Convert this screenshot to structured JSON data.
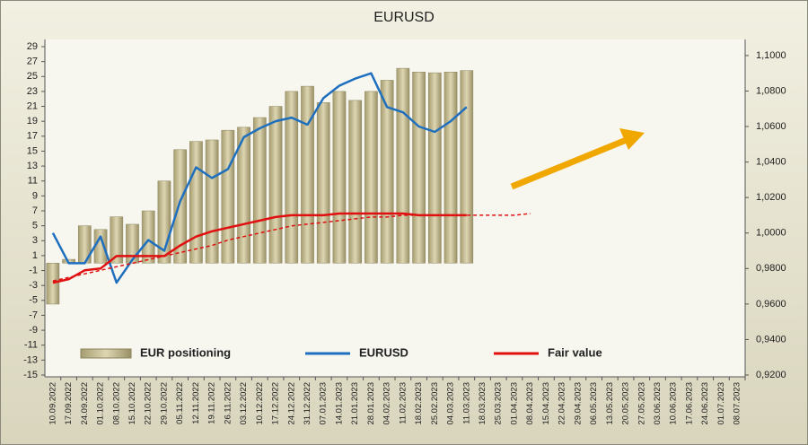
{
  "chart_data": {
    "type": "combo",
    "title": "EURUSD",
    "categories": [
      "10.09.2022",
      "17.09.2022",
      "24.09.2022",
      "01.10.2022",
      "08.10.2022",
      "15.10.2022",
      "22.10.2022",
      "29.10.2022",
      "05.11.2022",
      "12.11.2022",
      "19.11.2022",
      "26.11.2022",
      "03.12.2022",
      "10.12.2022",
      "17.12.2022",
      "24.12.2022",
      "31.12.2022",
      "07.01.2023",
      "14.01.2023",
      "21.01.2023",
      "28.01.2023",
      "04.02.2023",
      "11.02.2023",
      "18.02.2023",
      "25.02.2023",
      "04.03.2023",
      "11.03.2023",
      "18.03.2023",
      "25.03.2023",
      "01.04.2023",
      "08.04.2023",
      "15.04.2023",
      "22.04.2023",
      "29.04.2023",
      "06.05.2023",
      "13.05.2023",
      "20.05.2023",
      "27.05.2023",
      "03.06.2023",
      "10.06.2023",
      "17.06.2023",
      "24.06.2023",
      "01.07.2023",
      "08.07.2023"
    ],
    "series": [
      {
        "name": "EUR positioning",
        "kind": "bar",
        "color": "#c9c095",
        "values": [
          -5.5,
          0.5,
          5,
          4.5,
          6.2,
          5.2,
          7,
          11,
          15.2,
          16.3,
          16.5,
          17.8,
          18.2,
          19.5,
          21,
          23,
          23.7,
          21.5,
          23,
          21.8,
          23,
          24.5,
          26.1,
          25.6,
          25.5,
          25.6,
          25.8,
          null,
          null,
          null,
          null,
          null,
          null,
          null,
          null,
          null,
          null,
          null,
          null,
          null,
          null,
          null,
          null,
          null
        ]
      },
      {
        "name": "EURUSD",
        "kind": "line",
        "axis": "y2",
        "color": "#1f6fbf",
        "values": [
          1.0,
          0.983,
          0.983,
          0.998,
          0.972,
          0.985,
          0.996,
          0.99,
          1.018,
          1.037,
          1.031,
          1.036,
          1.054,
          1.059,
          1.063,
          1.065,
          1.061,
          1.076,
          1.083,
          1.087,
          1.09,
          1.071,
          1.068,
          1.06,
          1.057,
          1.063,
          1.071,
          null,
          null,
          null,
          null,
          null,
          null,
          null,
          null,
          null,
          null,
          null,
          null,
          null,
          null,
          null,
          null,
          null
        ]
      },
      {
        "name": "Fair value",
        "kind": "line",
        "axis": "y2",
        "color": "#e01010",
        "values": [
          0.972,
          0.974,
          0.979,
          0.98,
          0.987,
          0.987,
          0.987,
          0.987,
          0.993,
          0.998,
          1.001,
          1.003,
          1.005,
          1.007,
          1.009,
          1.01,
          1.01,
          1.01,
          1.011,
          1.011,
          1.011,
          1.011,
          1.011,
          1.01,
          1.01,
          1.01,
          1.01,
          null,
          null,
          null,
          null,
          null,
          null,
          null,
          null,
          null,
          null,
          null,
          null,
          null,
          null,
          null,
          null,
          null
        ]
      },
      {
        "kind": "dashed",
        "axis": "y2",
        "color": "#e01010",
        "values": [
          0.973,
          0.975,
          0.977,
          0.979,
          0.981,
          0.983,
          0.985,
          0.987,
          0.989,
          0.991,
          0.993,
          0.996,
          0.998,
          1.0,
          1.002,
          1.004,
          1.005,
          1.006,
          1.007,
          1.008,
          1.009,
          1.009,
          1.01,
          1.01,
          1.01,
          1.01,
          1.01,
          1.01,
          1.01,
          1.01,
          1.011,
          null,
          null,
          null,
          null,
          null,
          null,
          null,
          null,
          null,
          null,
          null,
          null,
          null
        ]
      }
    ],
    "ylim": [
      -15,
      29
    ],
    "yticks": [
      -15,
      -13,
      -11,
      -9,
      -7,
      -5,
      -3,
      -1,
      1,
      3,
      5,
      7,
      9,
      11,
      13,
      15,
      17,
      19,
      21,
      23,
      25,
      27,
      29
    ],
    "y2lim": [
      0.92,
      1.105
    ],
    "y2ticks": [
      {
        "value": 0.92,
        "label": "0,9200"
      },
      {
        "value": 0.94,
        "label": "0,9400"
      },
      {
        "value": 0.96,
        "label": "0,9600"
      },
      {
        "value": 0.98,
        "label": "0,9800"
      },
      {
        "value": 1.0,
        "label": "1,0000"
      },
      {
        "value": 1.02,
        "label": "1,0200"
      },
      {
        "value": 1.04,
        "label": "1,0400"
      },
      {
        "value": 1.06,
        "label": "1,0600"
      },
      {
        "value": 1.08,
        "label": "1,0800"
      },
      {
        "value": 1.1,
        "label": "1,1000"
      }
    ],
    "legend": "bottom"
  }
}
